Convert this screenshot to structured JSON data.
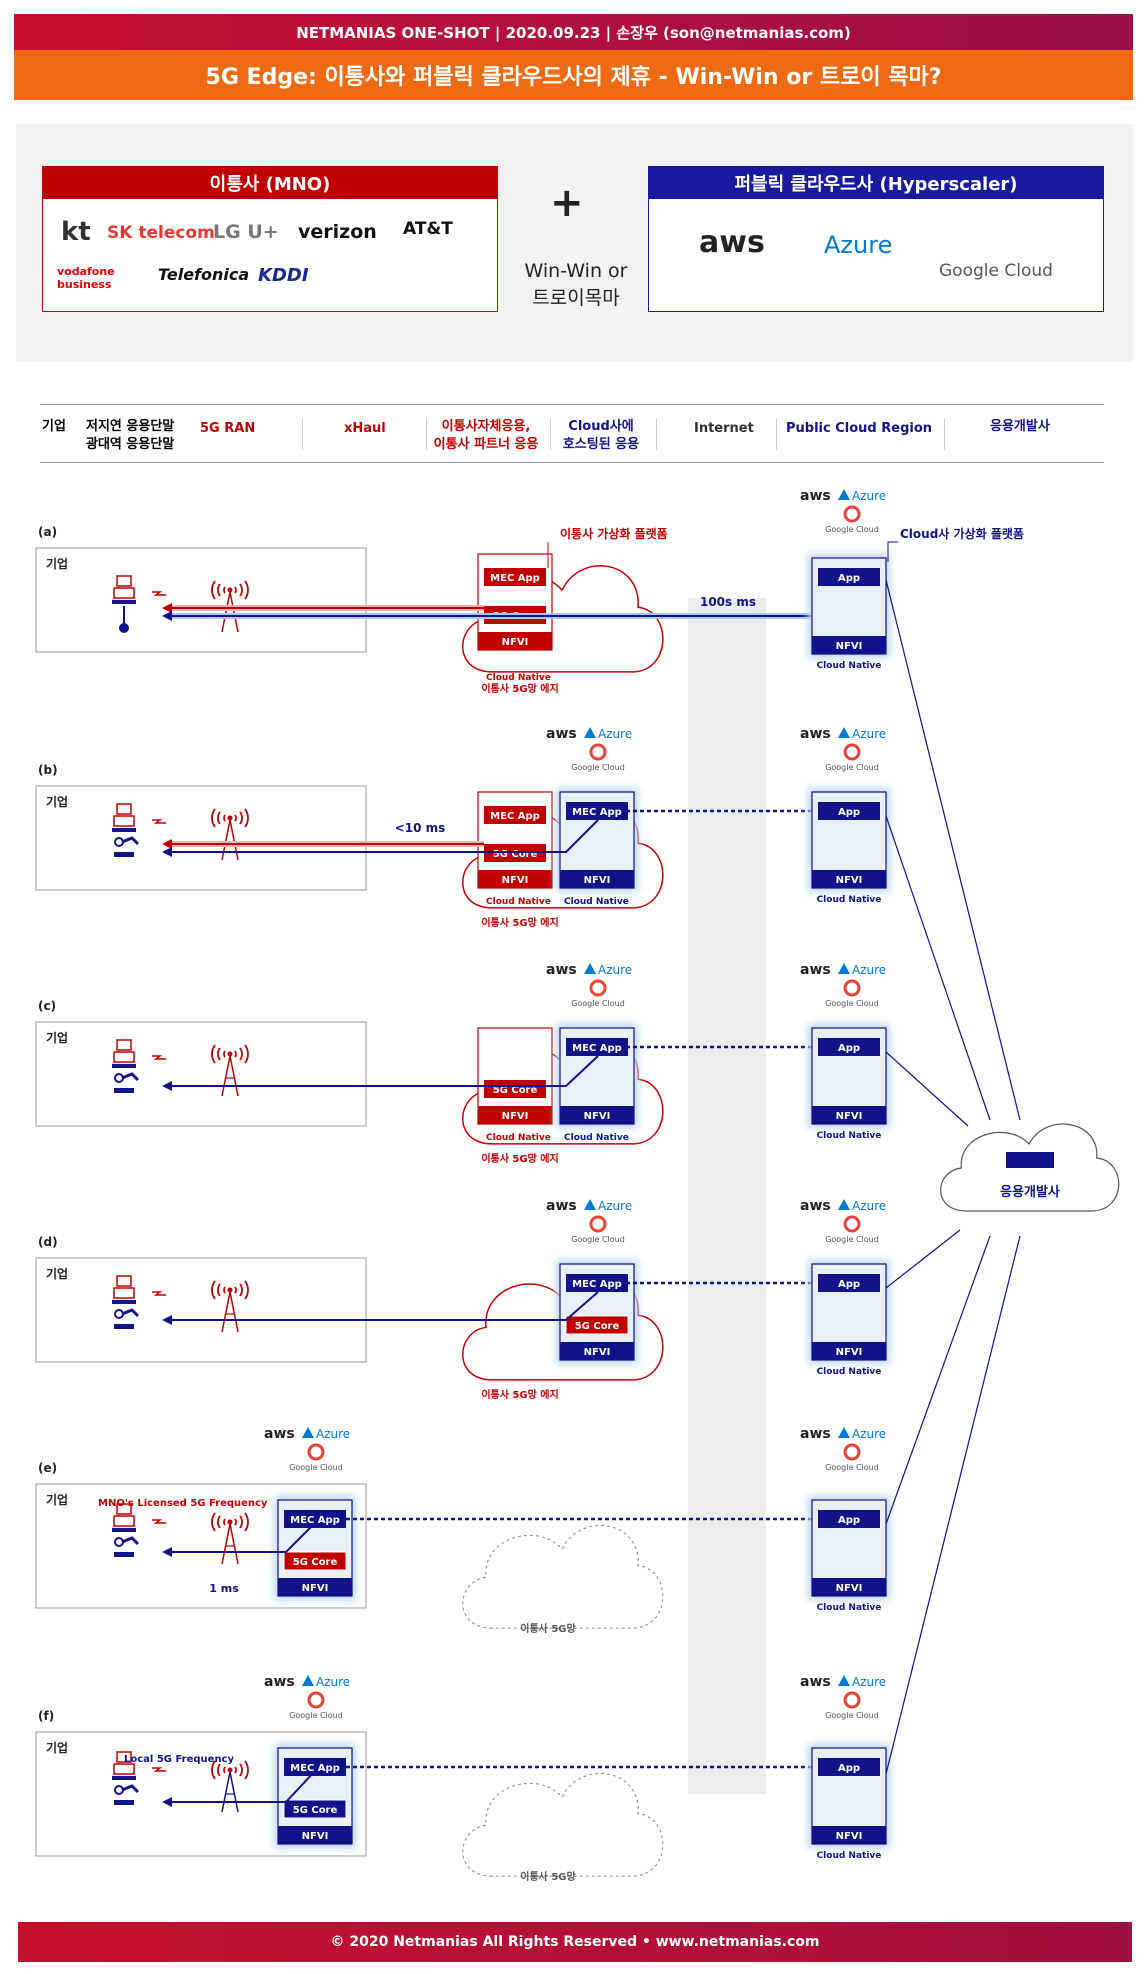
{
  "header": {
    "line1": "NETMANIAS ONE-SHOT | 2020.09.23 | 손장우 (son@netmanias.com)",
    "title": "5G Edge: 이통사와 퍼블릭 클라우드사의 제휴 - Win-Win or 트로이 목마?"
  },
  "partners": {
    "mno_title": "이통사 (MNO)",
    "mno_logos": [
      "kt",
      "SK telecom",
      "LG U+",
      "verizon",
      "AT&T",
      "vodafone business",
      "Telefonica",
      "KDDI"
    ],
    "plus": "+",
    "winwin_line1": "Win-Win or",
    "winwin_line2": "트로이목마",
    "hyperscaler_title": "퍼블릭 클라우드사 (Hyperscaler)",
    "hyperscaler_logos": [
      "aws",
      "Azure",
      "Google Cloud"
    ]
  },
  "columns": {
    "enterprise": "기업",
    "devices_line1": "저지연 응용단말",
    "devices_line2": "광대역 응용단말",
    "ran": "5G RAN",
    "xhaul": "xHaul",
    "mno_apps_line1": "이통사자체응용,",
    "mno_apps_line2": "이통사 파트너 응용",
    "cloud_hosted_line1": "Cloud사에",
    "cloud_hosted_line2": "호스팅된 응용",
    "internet": "Internet",
    "region": "Public Cloud Region",
    "developer": "응용개발사"
  },
  "labels": {
    "enterprise": "기업",
    "mec_app": "MEC App",
    "core": "5G Core",
    "nfvi": "NFVI",
    "app": "App",
    "cloud_native": "Cloud Native",
    "mno_edge": "이통사 5G망 에지",
    "mno_network": "이통사 5G망",
    "mno_platform": "이통사 가상화 플랫폼",
    "cloud_platform": "Cloud사 가상화 플랫폼",
    "latency_a": "100s ms",
    "latency_b": "<10 ms",
    "latency_e": "1 ms",
    "licensed_freq": "MNO's Licensed 5G Frequency",
    "local_freq": "Local 5G Frequency",
    "developer": "응용개발사",
    "aws": "aws",
    "azure": "Azure",
    "google_cloud": "Google Cloud"
  },
  "scenarios": [
    "(a)",
    "(b)",
    "(c)",
    "(d)",
    "(e)",
    "(f)"
  ],
  "colors": {
    "red": "#c00000",
    "navy": "#12128a",
    "orange": "#ef6b13",
    "glow": "#bcd8ee"
  },
  "footer": "© 2020 Netmanias All Rights Reserved • www.netmanias.com"
}
